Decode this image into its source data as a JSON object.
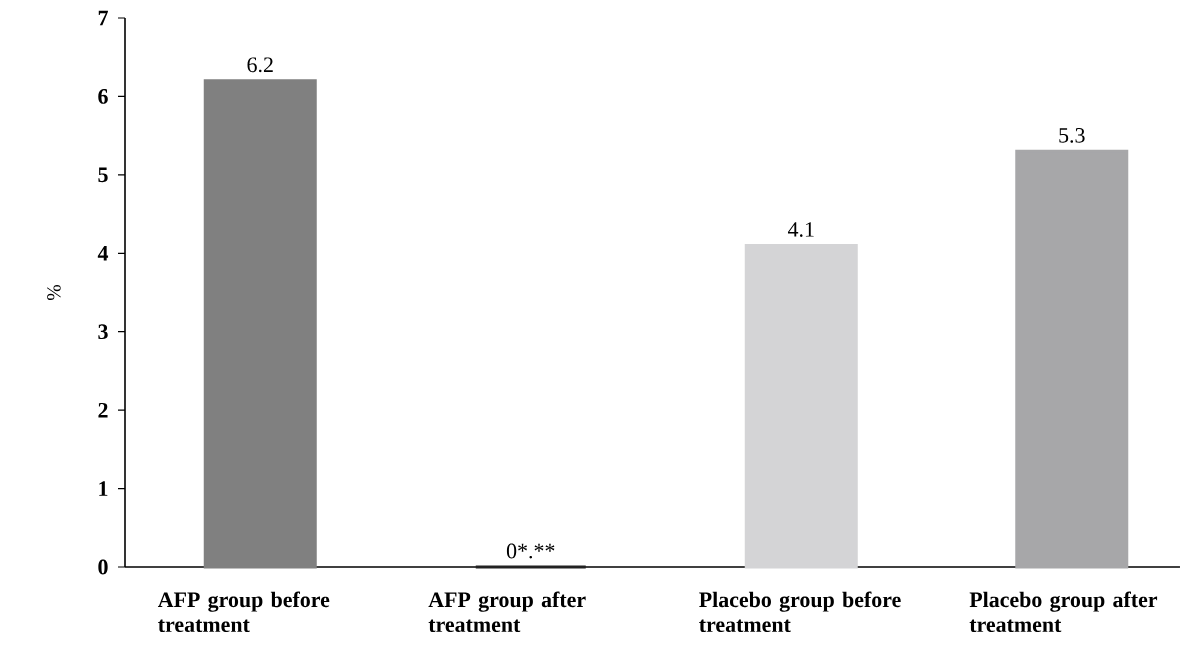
{
  "chart_data": {
    "type": "bar",
    "ylabel": "%",
    "categories": [
      "AFP group before treatment",
      "AFP group after treatment",
      "Placebo group before treatment",
      "Placebo group after treatment"
    ],
    "values": [
      6.2,
      0,
      4.1,
      5.3
    ],
    "colors": [
      "#808080",
      "#222222",
      "#d4d4d6",
      "#a7a7a9"
    ],
    "value_labels": [
      "6.2",
      "0*.**",
      "4.1",
      "5.3"
    ],
    "ylim": [
      0,
      7
    ],
    "yticks": [
      0,
      1,
      2,
      3,
      4,
      5,
      6,
      7
    ]
  }
}
